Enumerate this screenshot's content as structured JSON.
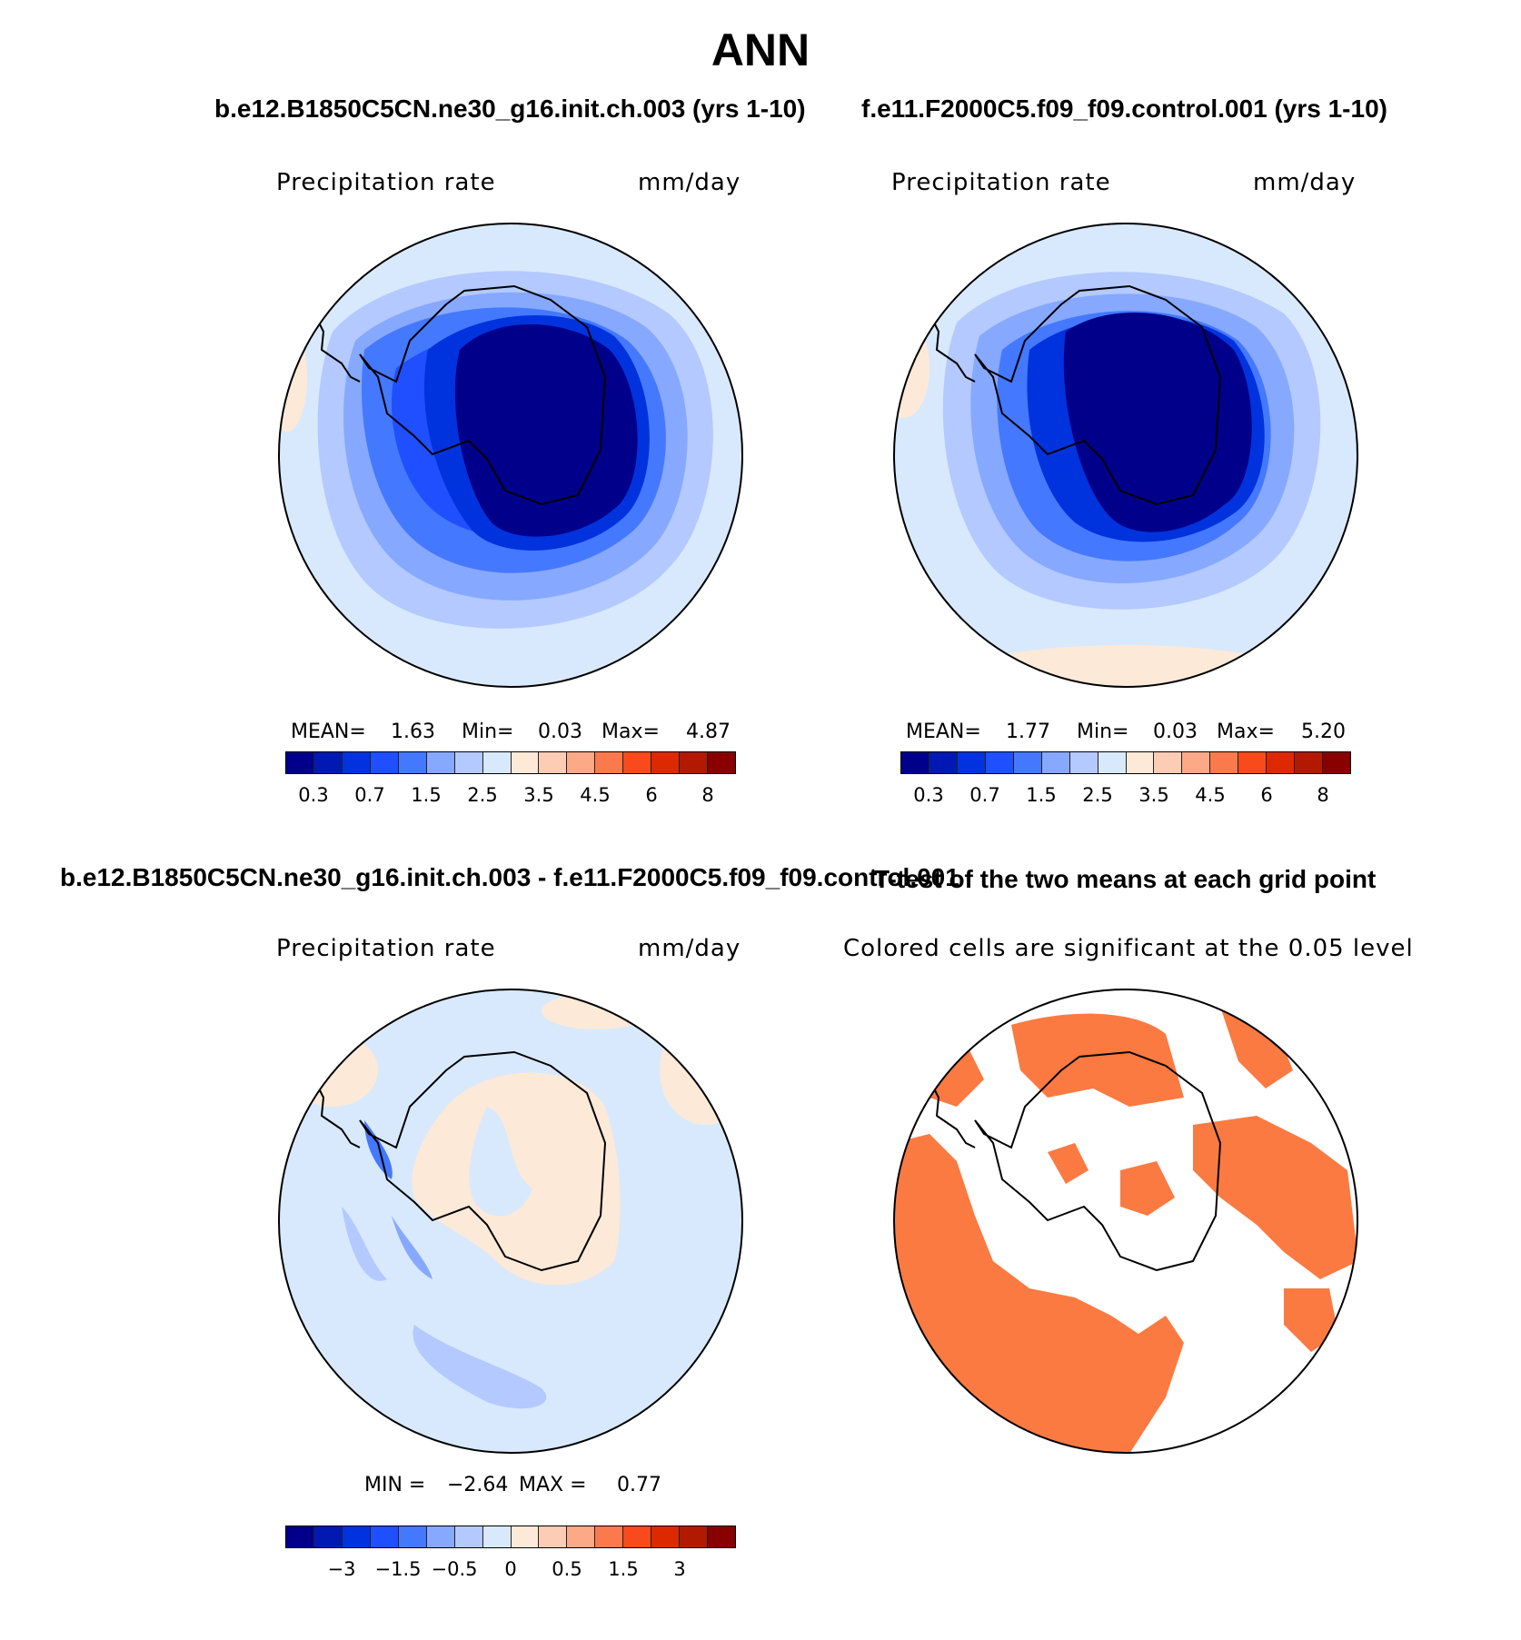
{
  "figure": {
    "title": "ANN",
    "case1_title": "b.e12.B1850C5CN.ne30_g16.init.ch.003 (yrs 1-10)",
    "case2_title": "f.e11.F2000C5.f09_f09.control.001 (yrs 1-10)",
    "diff_title": "b.e12.B1850C5CN.ne30_g16.init.ch.003 - f.e11.F2000C5.f09_f09.control.001",
    "ttest_title": "T-test of the two means at each grid point"
  },
  "panels": {
    "p1": {
      "variable": "Precipitation rate",
      "units": "mm/day",
      "mean_label": "MEAN=",
      "mean": "1.63",
      "min_label": "Min=",
      "min": "0.03",
      "max_label": "Max=",
      "max": "4.87"
    },
    "p2": {
      "variable": "Precipitation rate",
      "units": "mm/day",
      "mean_label": "MEAN=",
      "mean": "1.77",
      "min_label": "Min=",
      "min": "0.03",
      "max_label": "Max=",
      "max": "5.20"
    },
    "p3": {
      "variable": "Precipitation rate",
      "units": "mm/day",
      "min_label": "MIN =",
      "min": "−2.64",
      "max_label": "MAX =",
      "max": "0.77"
    },
    "p4": {
      "subtitle": "Colored cells are significant at the 0.05 level"
    }
  },
  "colorbars": {
    "precip": {
      "colors": [
        "#00008b",
        "#0019b3",
        "#0033dd",
        "#1f4fff",
        "#4478ff",
        "#86a8ff",
        "#b3c9ff",
        "#d8e9fd",
        "#fde9d7",
        "#fdccb4",
        "#fca988",
        "#fb7a4d",
        "#f84a1a",
        "#dd2900",
        "#b21a00",
        "#880000"
      ],
      "tick_labels": [
        "0.3",
        "0.7",
        "1.5",
        "2.5",
        "3.5",
        "4.5",
        "6",
        "8"
      ]
    },
    "diff": {
      "colors": [
        "#00008b",
        "#0019b3",
        "#0033dd",
        "#1f4fff",
        "#4478ff",
        "#86a8ff",
        "#b3c9ff",
        "#d8e9fd",
        "#fde9d7",
        "#fdccb4",
        "#fca988",
        "#fb7a4d",
        "#f84a1a",
        "#dd2900",
        "#b21a00",
        "#880000"
      ],
      "tick_labels": [
        "−3",
        "−1.5",
        "−0.5",
        "0",
        "0.5",
        "1.5",
        "3"
      ]
    }
  },
  "map_colors": {
    "ocean_light": "#d8e9fd",
    "band2": "#b3c9ff",
    "band3": "#86a8ff",
    "band4": "#4478ff",
    "band5": "#1f4fff",
    "band6": "#0033dd",
    "core": "#00008b",
    "warm": "#fde9d7",
    "warm2": "#fca988",
    "significant": "#fb7a42"
  }
}
